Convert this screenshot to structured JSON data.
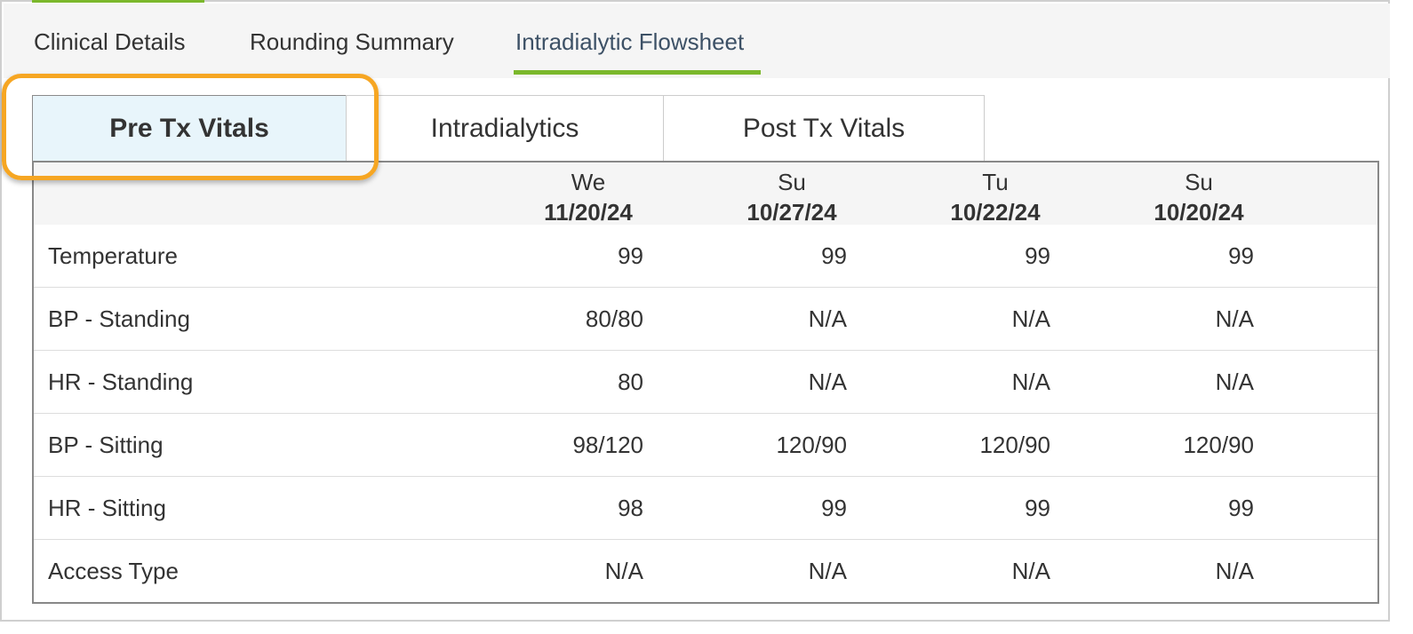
{
  "nav": {
    "tabs": [
      {
        "label": "Clinical Details"
      },
      {
        "label": "Rounding Summary"
      },
      {
        "label": "Intradialytic Flowsheet"
      }
    ],
    "active_index": 2
  },
  "subtabs": {
    "items": [
      {
        "label": "Pre Tx Vitals"
      },
      {
        "label": "Intradialytics"
      },
      {
        "label": "Post Tx Vitals"
      }
    ],
    "active_index": 0
  },
  "table": {
    "columns": [
      {
        "day": "We",
        "date": "11/20/24"
      },
      {
        "day": "Su",
        "date": "10/27/24"
      },
      {
        "day": "Tu",
        "date": "10/22/24"
      },
      {
        "day": "Su",
        "date": "10/20/24"
      }
    ],
    "rows": [
      {
        "label": "Temperature",
        "values": [
          "99",
          "99",
          "99",
          "99"
        ]
      },
      {
        "label": "BP - Standing",
        "values": [
          "80/80",
          "N/A",
          "N/A",
          "N/A"
        ]
      },
      {
        "label": "HR - Standing",
        "values": [
          "80",
          "N/A",
          "N/A",
          "N/A"
        ]
      },
      {
        "label": "BP - Sitting",
        "values": [
          "98/120",
          "120/90",
          "120/90",
          "120/90"
        ]
      },
      {
        "label": "HR - Sitting",
        "values": [
          "98",
          "99",
          "99",
          "99"
        ]
      },
      {
        "label": "Access Type",
        "values": [
          "N/A",
          "N/A",
          "N/A",
          "N/A"
        ]
      }
    ]
  },
  "colors": {
    "accent_green": "#7bb82c",
    "highlight_orange": "#f6a623",
    "active_subtab_bg": "#e8f5fb"
  }
}
